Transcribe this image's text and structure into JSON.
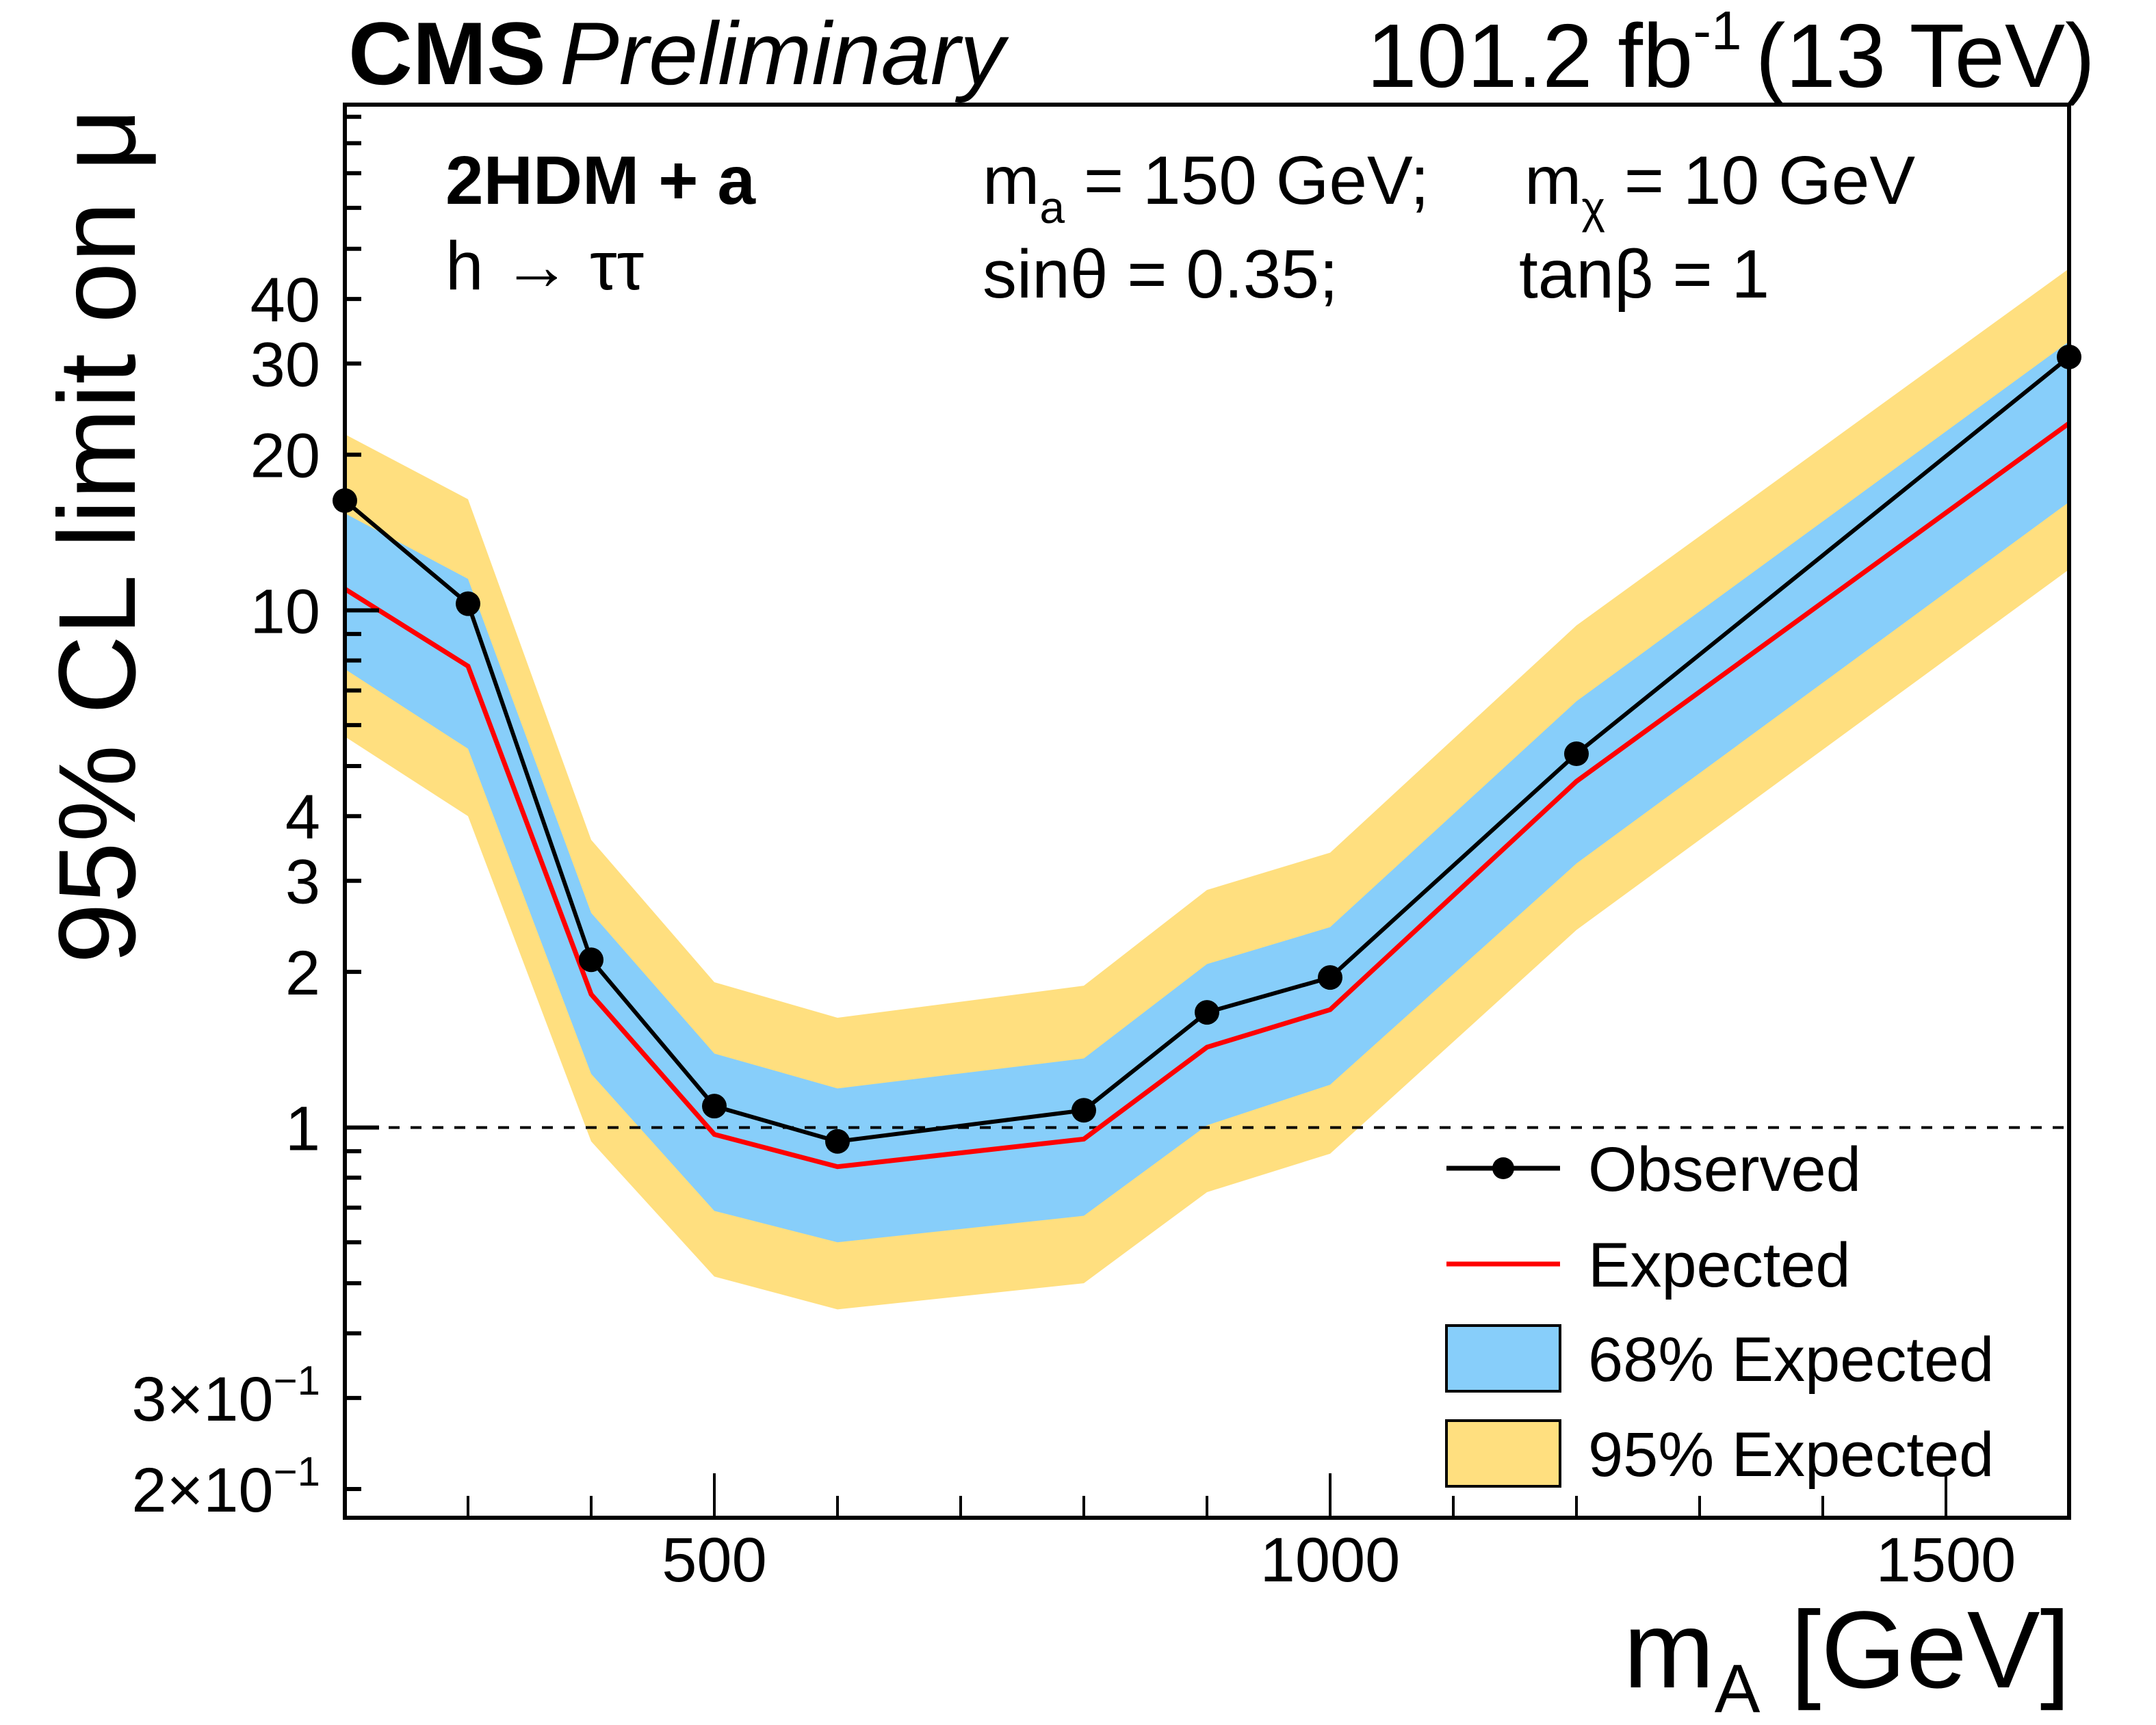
{
  "chart_data": {
    "type": "line",
    "header": {
      "experiment": "CMS",
      "status": "Preliminary",
      "luminosity": "101.2 fb",
      "luminosity_exponent": "-1",
      "energy": "(13 TeV)"
    },
    "annotations": {
      "model": "2HDM + a",
      "decay_main": "h → ττ",
      "ma_text": "m",
      "ma_sub": "a",
      "ma_value": " = 150 GeV;",
      "mchi_text": "m",
      "mchi_sub": "χ",
      "mchi_value": " = 10 GeV",
      "sintheta": "sinθ = 0.35;",
      "tanbeta": "tanβ = 1"
    },
    "xlabel": "m",
    "xlabel_sub": "A",
    "xlabel_unit": " [GeV]",
    "ylabel": "95% CL limit on μ",
    "xlim": [
      200,
      1600
    ],
    "ylim": [
      0.176,
      95
    ],
    "yscale": "log",
    "x_ticks": [
      {
        "value": 500,
        "label": "500"
      },
      {
        "value": 1000,
        "label": "1000"
      },
      {
        "value": 1500,
        "label": "1500"
      }
    ],
    "y_ticks": [
      {
        "value": 0.2,
        "label": "2×10",
        "exp": "−1"
      },
      {
        "value": 0.3,
        "label": "3×10",
        "exp": "−1"
      },
      {
        "value": 1,
        "label": "1",
        "exp": ""
      },
      {
        "value": 2,
        "label": "2",
        "exp": ""
      },
      {
        "value": 3,
        "label": "3",
        "exp": ""
      },
      {
        "value": 4,
        "label": "4",
        "exp": ""
      },
      {
        "value": 10,
        "label": "10",
        "exp": ""
      },
      {
        "value": 20,
        "label": "20",
        "exp": ""
      },
      {
        "value": 30,
        "label": "30",
        "exp": ""
      },
      {
        "value": 40,
        "label": "40",
        "exp": ""
      }
    ],
    "reference_line": {
      "y": 1,
      "style": "dashed"
    },
    "x": [
      200,
      300,
      400,
      500,
      600,
      800,
      900,
      1000,
      1200,
      1600
    ],
    "series": [
      {
        "name": "Observed",
        "color": "#000000",
        "marker": "circle",
        "values": [
          16.3,
          10.3,
          2.11,
          1.1,
          0.94,
          1.08,
          1.67,
          1.95,
          5.28,
          30.9
        ]
      },
      {
        "name": "Expected",
        "color": "#ff0000",
        "marker": "none",
        "values": [
          11.0,
          7.8,
          1.81,
          0.97,
          0.84,
          0.95,
          1.43,
          1.69,
          4.67,
          23.0
        ]
      }
    ],
    "bands": [
      {
        "name": "95% Expected",
        "color": "#ffdf7f",
        "upper": [
          21.9,
          16.4,
          3.6,
          1.91,
          1.63,
          1.88,
          2.88,
          3.4,
          9.35,
          45.8
        ],
        "lower": [
          5.7,
          4.0,
          0.94,
          0.515,
          0.445,
          0.5,
          0.75,
          0.89,
          2.41,
          12.0
        ]
      },
      {
        "name": "68% Expected",
        "color": "#87cefa",
        "upper": [
          15.4,
          11.5,
          2.6,
          1.39,
          1.19,
          1.36,
          2.07,
          2.44,
          6.67,
          33.1
        ],
        "lower": [
          7.7,
          5.4,
          1.27,
          0.69,
          0.6,
          0.675,
          1.01,
          1.21,
          3.24,
          16.2
        ]
      }
    ],
    "legend": {
      "position": "bottom-right",
      "entries": [
        {
          "label": "Observed",
          "kind": "line-marker",
          "color": "#000000"
        },
        {
          "label": "Expected",
          "kind": "line",
          "color": "#ff0000"
        },
        {
          "label": "68% Expected",
          "kind": "box",
          "color": "#87cefa"
        },
        {
          "label": "95% Expected",
          "kind": "box",
          "color": "#ffdf7f"
        }
      ]
    },
    "grid": false
  }
}
